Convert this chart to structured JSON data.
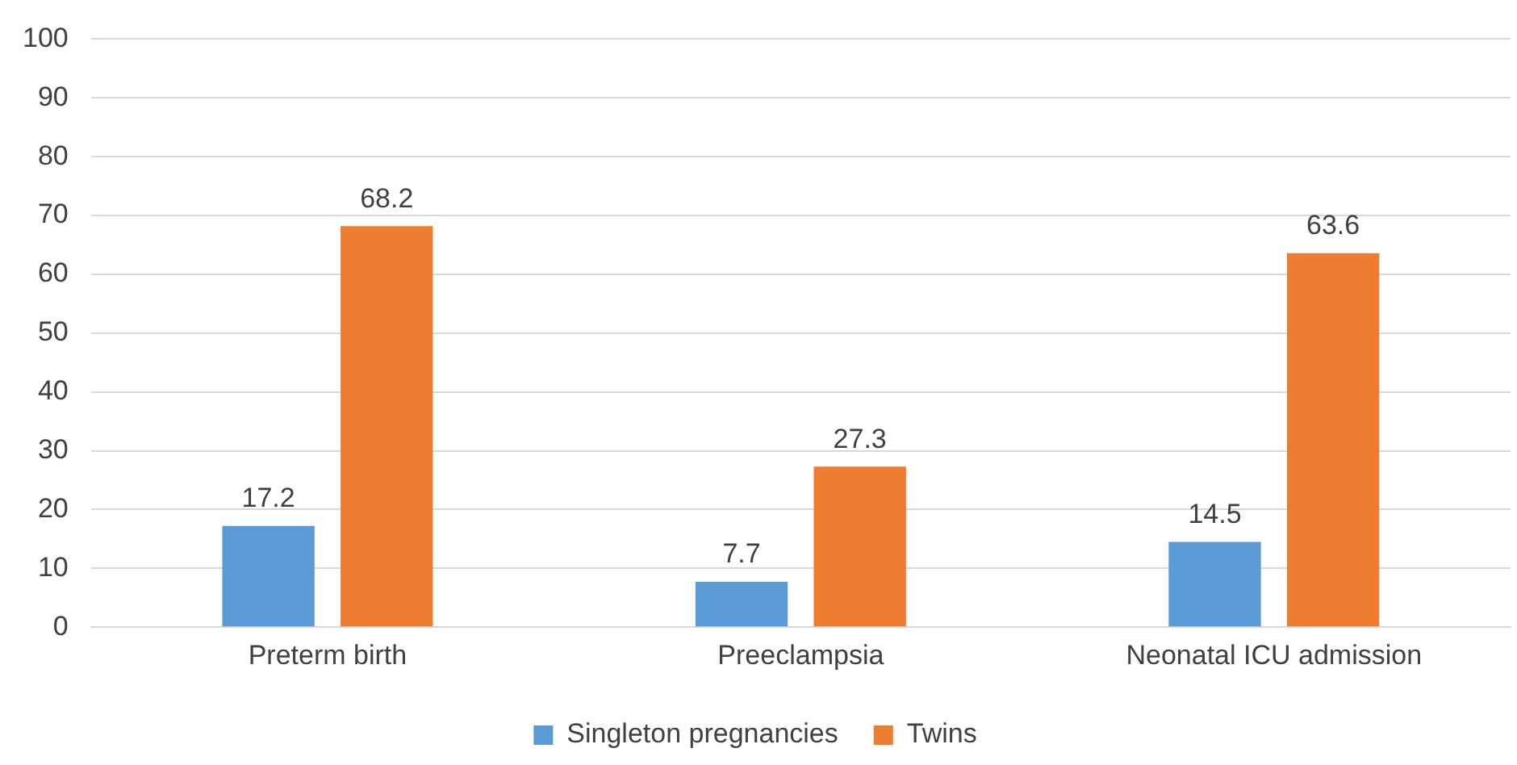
{
  "chart_data": {
    "type": "bar",
    "categories": [
      "Preterm birth",
      "Preeclampsia",
      "Neonatal ICU admission"
    ],
    "series": [
      {
        "name": "Singleton pregnancies",
        "color": "#5b9bd5",
        "values": [
          17.2,
          7.7,
          14.5
        ]
      },
      {
        "name": "Twins",
        "color": "#ed7d31",
        "values": [
          68.2,
          27.3,
          63.6
        ]
      }
    ],
    "ylim": [
      0,
      100
    ],
    "yticks": [
      0,
      10,
      20,
      30,
      40,
      50,
      60,
      70,
      80,
      90,
      100
    ],
    "grid": "y",
    "legend": "bottom",
    "data_labels": true
  }
}
